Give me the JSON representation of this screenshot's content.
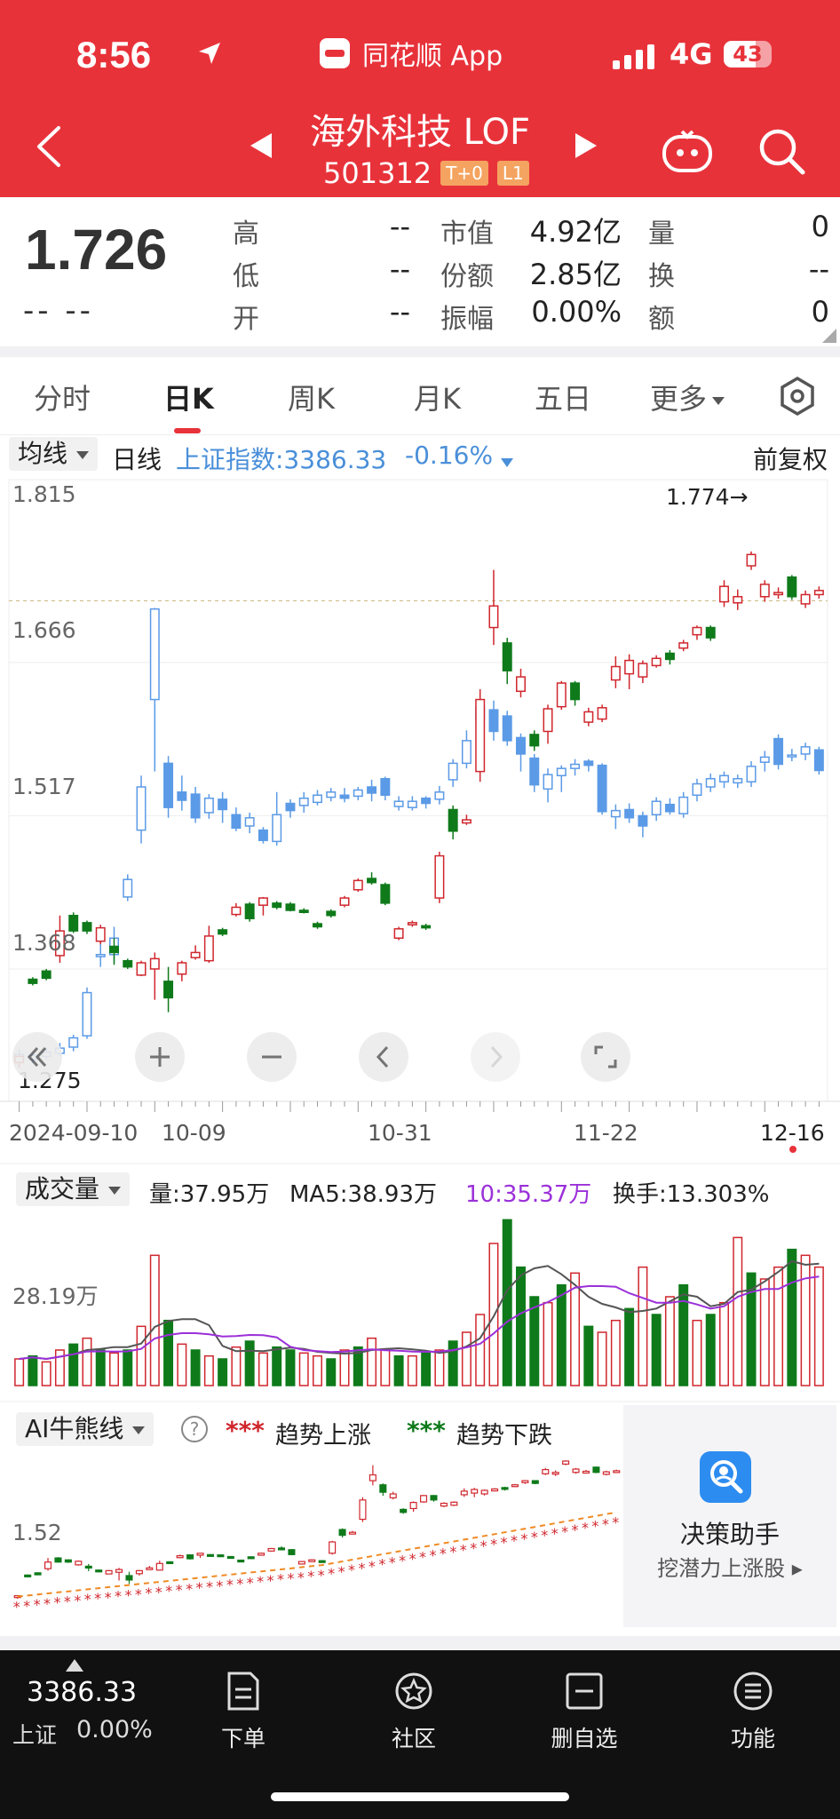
{
  "status_bar": {
    "time": "8:56",
    "app_name": "同花顺 App",
    "network": "4G",
    "battery": "43"
  },
  "header": {
    "title": "海外科技 LOF",
    "code": "501312",
    "tag_t0": "T+0",
    "tag_l1": "L1"
  },
  "quote": {
    "price": "1.726",
    "change": "-- --",
    "fields": [
      {
        "label": "高",
        "value": "--"
      },
      {
        "label": "低",
        "value": "--"
      },
      {
        "label": "开",
        "value": "--"
      },
      {
        "label": "市值",
        "value": "4.92亿"
      },
      {
        "label": "份额",
        "value": "2.85亿"
      },
      {
        "label": "振幅",
        "value": "0.00%"
      },
      {
        "label": "量",
        "value": "0"
      },
      {
        "label": "换",
        "value": "--"
      },
      {
        "label": "额",
        "value": "0"
      }
    ]
  },
  "tabs": [
    "分时",
    "日K",
    "周K",
    "月K",
    "五日",
    "更多"
  ],
  "active_tab": "日K",
  "indicator_bar": {
    "select": "均线",
    "period": "日线",
    "index_text": "上证指数:3386.33",
    "index_change": "-0.16%",
    "adjust": "前复权"
  },
  "kline": {
    "y_labels": [
      "1.815",
      "1.666",
      "1.517",
      "1.368",
      "1.275"
    ],
    "max_marker": "1.774→",
    "x_labels": [
      "2024-09-10",
      "10-09",
      "10-31",
      "11-22",
      "12-16"
    ],
    "colors": {
      "up": "#d0262d",
      "down": "#0e7a1a",
      "index": "#5b9ae6"
    }
  },
  "volume": {
    "select": "成交量",
    "vol": "量:37.95万",
    "ma5": "MA5:38.93万",
    "ma10": "10:35.37万",
    "turnover": "换手:13.303%",
    "y_label": "28.19万"
  },
  "ai_panel": {
    "select": "AI牛熊线",
    "help": "?",
    "legend_up_mark": "***",
    "legend_up": "趋势上涨",
    "legend_down_mark": "***",
    "legend_down": "趋势下跌",
    "y_label": "1.52",
    "assistant_title": "决策助手",
    "assistant_sub": "挖潜力上涨股 ▸"
  },
  "bottom_bar": {
    "index_value": "3386.33",
    "index_name": "上证",
    "index_pct": "0.00%",
    "items": [
      "下单",
      "社区",
      "删自选",
      "功能"
    ]
  },
  "chart_data": {
    "type": "candlestick",
    "title": "",
    "y_range": [
      1.26,
      1.83
    ],
    "fund_candles": [
      {
        "o": 1.277,
        "c": 1.283,
        "h": 1.285,
        "l": 1.272
      },
      {
        "o": 1.358,
        "c": 1.354,
        "h": 1.36,
        "l": 1.352
      },
      {
        "o": 1.366,
        "c": 1.359,
        "h": 1.368,
        "l": 1.357
      },
      {
        "o": 1.381,
        "c": 1.405,
        "h": 1.42,
        "l": 1.374
      },
      {
        "o": 1.42,
        "c": 1.405,
        "h": 1.423,
        "l": 1.403
      },
      {
        "o": 1.413,
        "c": 1.405,
        "h": 1.415,
        "l": 1.402
      },
      {
        "o": 1.395,
        "c": 1.408,
        "h": 1.411,
        "l": 1.392
      },
      {
        "o": 1.39,
        "c": 1.384,
        "h": 1.398,
        "l": 1.372
      },
      {
        "o": 1.376,
        "c": 1.37,
        "h": 1.378,
        "l": 1.368
      },
      {
        "o": 1.362,
        "c": 1.374,
        "h": 1.376,
        "l": 1.361
      },
      {
        "o": 1.368,
        "c": 1.378,
        "h": 1.384,
        "l": 1.338
      },
      {
        "o": 1.356,
        "c": 1.34,
        "h": 1.37,
        "l": 1.326
      },
      {
        "o": 1.363,
        "c": 1.374,
        "h": 1.376,
        "l": 1.356
      },
      {
        "o": 1.379,
        "c": 1.384,
        "h": 1.391,
        "l": 1.377
      },
      {
        "o": 1.376,
        "c": 1.4,
        "h": 1.41,
        "l": 1.374
      },
      {
        "o": 1.406,
        "c": 1.402,
        "h": 1.408,
        "l": 1.4
      },
      {
        "o": 1.421,
        "c": 1.428,
        "h": 1.432,
        "l": 1.419
      },
      {
        "o": 1.431,
        "c": 1.417,
        "h": 1.433,
        "l": 1.414
      },
      {
        "o": 1.43,
        "c": 1.437,
        "h": 1.438,
        "l": 1.42
      },
      {
        "o": 1.432,
        "c": 1.428,
        "h": 1.434,
        "l": 1.426
      },
      {
        "o": 1.431,
        "c": 1.425,
        "h": 1.433,
        "l": 1.424
      },
      {
        "o": 1.425,
        "c": 1.423,
        "h": 1.427,
        "l": 1.422
      },
      {
        "o": 1.412,
        "c": 1.409,
        "h": 1.414,
        "l": 1.407
      },
      {
        "o": 1.424,
        "c": 1.42,
        "h": 1.426,
        "l": 1.418
      },
      {
        "o": 1.43,
        "c": 1.437,
        "h": 1.439,
        "l": 1.428
      },
      {
        "o": 1.445,
        "c": 1.454,
        "h": 1.456,
        "l": 1.443
      },
      {
        "o": 1.456,
        "c": 1.452,
        "h": 1.462,
        "l": 1.45
      },
      {
        "o": 1.45,
        "c": 1.432,
        "h": 1.452,
        "l": 1.43
      },
      {
        "o": 1.398,
        "c": 1.407,
        "h": 1.409,
        "l": 1.396
      },
      {
        "o": 1.411,
        "c": 1.413,
        "h": 1.415,
        "l": 1.409
      },
      {
        "o": 1.41,
        "c": 1.408,
        "h": 1.412,
        "l": 1.406
      },
      {
        "o": 1.437,
        "c": 1.478,
        "h": 1.482,
        "l": 1.432
      },
      {
        "o": 1.523,
        "c": 1.502,
        "h": 1.527,
        "l": 1.494
      },
      {
        "o": 1.51,
        "c": 1.513,
        "h": 1.518,
        "l": 1.508
      },
      {
        "o": 1.56,
        "c": 1.63,
        "h": 1.64,
        "l": 1.55
      },
      {
        "o": 1.7,
        "c": 1.721,
        "h": 1.756,
        "l": 1.683
      },
      {
        "o": 1.685,
        "c": 1.658,
        "h": 1.69,
        "l": 1.645
      },
      {
        "o": 1.638,
        "c": 1.652,
        "h": 1.66,
        "l": 1.632
      },
      {
        "o": 1.596,
        "c": 1.585,
        "h": 1.6,
        "l": 1.58
      },
      {
        "o": 1.599,
        "c": 1.621,
        "h": 1.625,
        "l": 1.587
      },
      {
        "o": 1.623,
        "c": 1.646,
        "h": 1.648,
        "l": 1.62
      },
      {
        "o": 1.646,
        "c": 1.63,
        "h": 1.648,
        "l": 1.624
      },
      {
        "o": 1.608,
        "c": 1.618,
        "h": 1.622,
        "l": 1.604
      },
      {
        "o": 1.611,
        "c": 1.622,
        "h": 1.625,
        "l": 1.608
      },
      {
        "o": 1.649,
        "c": 1.662,
        "h": 1.672,
        "l": 1.641
      },
      {
        "o": 1.655,
        "c": 1.668,
        "h": 1.674,
        "l": 1.64
      },
      {
        "o": 1.652,
        "c": 1.665,
        "h": 1.668,
        "l": 1.646
      },
      {
        "o": 1.663,
        "c": 1.67,
        "h": 1.673,
        "l": 1.661
      },
      {
        "o": 1.675,
        "c": 1.669,
        "h": 1.678,
        "l": 1.664
      },
      {
        "o": 1.68,
        "c": 1.685,
        "h": 1.688,
        "l": 1.677
      },
      {
        "o": 1.693,
        "c": 1.7,
        "h": 1.702,
        "l": 1.688
      },
      {
        "o": 1.7,
        "c": 1.69,
        "h": 1.702,
        "l": 1.687
      },
      {
        "o": 1.725,
        "c": 1.74,
        "h": 1.746,
        "l": 1.72
      },
      {
        "o": 1.724,
        "c": 1.73,
        "h": 1.737,
        "l": 1.717
      },
      {
        "o": 1.76,
        "c": 1.771,
        "h": 1.774,
        "l": 1.756
      },
      {
        "o": 1.73,
        "c": 1.742,
        "h": 1.746,
        "l": 1.725
      },
      {
        "o": 1.732,
        "c": 1.734,
        "h": 1.739,
        "l": 1.728
      },
      {
        "o": 1.749,
        "c": 1.73,
        "h": 1.751,
        "l": 1.727
      },
      {
        "o": 1.723,
        "c": 1.732,
        "h": 1.736,
        "l": 1.719
      },
      {
        "o": 1.732,
        "c": 1.736,
        "h": 1.74,
        "l": 1.728
      }
    ],
    "index_candles": [
      {
        "o": 1.278,
        "c": 1.285,
        "h": 1.29,
        "l": 1.272
      },
      {
        "o": 1.28,
        "c": 1.284,
        "h": 1.286,
        "l": 1.276
      },
      {
        "o": 1.283,
        "c": 1.287,
        "h": 1.292,
        "l": 1.28
      },
      {
        "o": 1.286,
        "c": 1.291,
        "h": 1.296,
        "l": 1.283
      },
      {
        "o": 1.292,
        "c": 1.301,
        "h": 1.304,
        "l": 1.288
      },
      {
        "o": 1.303,
        "c": 1.345,
        "h": 1.35,
        "l": 1.3
      },
      {
        "o": 1.38,
        "c": 1.382,
        "h": 1.41,
        "l": 1.37
      },
      {
        "o": 1.382,
        "c": 1.398,
        "h": 1.409,
        "l": 1.374
      },
      {
        "o": 1.438,
        "c": 1.455,
        "h": 1.46,
        "l": 1.434
      },
      {
        "o": 1.503,
        "c": 1.545,
        "h": 1.556,
        "l": 1.49
      },
      {
        "o": 1.63,
        "c": 1.718,
        "h": 1.719,
        "l": 1.56
      },
      {
        "o": 1.568,
        "c": 1.525,
        "h": 1.575,
        "l": 1.515
      },
      {
        "o": 1.54,
        "c": 1.532,
        "h": 1.556,
        "l": 1.522
      },
      {
        "o": 1.538,
        "c": 1.515,
        "h": 1.545,
        "l": 1.51
      },
      {
        "o": 1.52,
        "c": 1.534,
        "h": 1.538,
        "l": 1.514
      },
      {
        "o": 1.533,
        "c": 1.523,
        "h": 1.54,
        "l": 1.51
      },
      {
        "o": 1.518,
        "c": 1.505,
        "h": 1.525,
        "l": 1.502
      },
      {
        "o": 1.507,
        "c": 1.515,
        "h": 1.52,
        "l": 1.5
      },
      {
        "o": 1.503,
        "c": 1.493,
        "h": 1.506,
        "l": 1.49
      },
      {
        "o": 1.492,
        "c": 1.518,
        "h": 1.54,
        "l": 1.488
      },
      {
        "o": 1.529,
        "c": 1.522,
        "h": 1.533,
        "l": 1.515
      },
      {
        "o": 1.527,
        "c": 1.534,
        "h": 1.54,
        "l": 1.52
      },
      {
        "o": 1.53,
        "c": 1.537,
        "h": 1.542,
        "l": 1.527
      },
      {
        "o": 1.535,
        "c": 1.54,
        "h": 1.544,
        "l": 1.531
      },
      {
        "o": 1.537,
        "c": 1.534,
        "h": 1.544,
        "l": 1.53
      },
      {
        "o": 1.536,
        "c": 1.542,
        "h": 1.545,
        "l": 1.532
      },
      {
        "o": 1.545,
        "c": 1.539,
        "h": 1.552,
        "l": 1.531
      },
      {
        "o": 1.553,
        "c": 1.537,
        "h": 1.555,
        "l": 1.532
      },
      {
        "o": 1.526,
        "c": 1.531,
        "h": 1.536,
        "l": 1.522
      },
      {
        "o": 1.525,
        "c": 1.531,
        "h": 1.536,
        "l": 1.522
      },
      {
        "o": 1.534,
        "c": 1.529,
        "h": 1.536,
        "l": 1.524
      },
      {
        "o": 1.533,
        "c": 1.54,
        "h": 1.546,
        "l": 1.528
      },
      {
        "o": 1.552,
        "c": 1.568,
        "h": 1.572,
        "l": 1.545
      },
      {
        "o": 1.568,
        "c": 1.59,
        "h": 1.6,
        "l": 1.563
      },
      {
        "o": 1.61,
        "c": 1.623,
        "h": 1.63,
        "l": 1.596
      },
      {
        "o": 1.62,
        "c": 1.599,
        "h": 1.629,
        "l": 1.59
      },
      {
        "o": 1.614,
        "c": 1.59,
        "h": 1.619,
        "l": 1.585
      },
      {
        "o": 1.593,
        "c": 1.577,
        "h": 1.597,
        "l": 1.56
      },
      {
        "o": 1.573,
        "c": 1.547,
        "h": 1.577,
        "l": 1.54
      },
      {
        "o": 1.543,
        "c": 1.557,
        "h": 1.563,
        "l": 1.53
      },
      {
        "o": 1.556,
        "c": 1.563,
        "h": 1.566,
        "l": 1.54
      },
      {
        "o": 1.563,
        "c": 1.567,
        "h": 1.572,
        "l": 1.556
      },
      {
        "o": 1.57,
        "c": 1.566,
        "h": 1.572,
        "l": 1.56
      },
      {
        "o": 1.566,
        "c": 1.521,
        "h": 1.568,
        "l": 1.518
      },
      {
        "o": 1.516,
        "c": 1.522,
        "h": 1.528,
        "l": 1.504
      },
      {
        "o": 1.523,
        "c": 1.515,
        "h": 1.529,
        "l": 1.51
      },
      {
        "o": 1.517,
        "c": 1.507,
        "h": 1.521,
        "l": 1.496
      },
      {
        "o": 1.518,
        "c": 1.531,
        "h": 1.535,
        "l": 1.512
      },
      {
        "o": 1.528,
        "c": 1.521,
        "h": 1.534,
        "l": 1.518
      },
      {
        "o": 1.519,
        "c": 1.535,
        "h": 1.54,
        "l": 1.515
      },
      {
        "o": 1.537,
        "c": 1.548,
        "h": 1.553,
        "l": 1.531
      },
      {
        "o": 1.545,
        "c": 1.553,
        "h": 1.558,
        "l": 1.54
      },
      {
        "o": 1.55,
        "c": 1.556,
        "h": 1.56,
        "l": 1.544
      },
      {
        "o": 1.549,
        "c": 1.553,
        "h": 1.557,
        "l": 1.544
      },
      {
        "o": 1.55,
        "c": 1.565,
        "h": 1.57,
        "l": 1.545
      },
      {
        "o": 1.569,
        "c": 1.574,
        "h": 1.58,
        "l": 1.56
      },
      {
        "o": 1.592,
        "c": 1.567,
        "h": 1.596,
        "l": 1.562
      },
      {
        "o": 1.575,
        "c": 1.576,
        "h": 1.582,
        "l": 1.57
      },
      {
        "o": 1.577,
        "c": 1.584,
        "h": 1.588,
        "l": 1.571
      },
      {
        "o": 1.581,
        "c": 1.561,
        "h": 1.584,
        "l": 1.557
      }
    ],
    "volumes": [
      9,
      10,
      8,
      12,
      14,
      16,
      12,
      11,
      12,
      20,
      44,
      22,
      14,
      12,
      10,
      9,
      13,
      15,
      11,
      13,
      12,
      11,
      10,
      9,
      12,
      13,
      16,
      12,
      10,
      10,
      11,
      12,
      15,
      18,
      24,
      48,
      56,
      40,
      30,
      28,
      34,
      38,
      20,
      18,
      22,
      26,
      40,
      24,
      30,
      34,
      22,
      24,
      28,
      50,
      38,
      36,
      40,
      46,
      44,
      40
    ],
    "volume_up": [
      true,
      false,
      true,
      true,
      false,
      true,
      false,
      true,
      false,
      true,
      true,
      false,
      true,
      false,
      true,
      false,
      true,
      false,
      true,
      false,
      false,
      true,
      true,
      false,
      true,
      false,
      true,
      true,
      false,
      true,
      false,
      true,
      false,
      true,
      true,
      true,
      false,
      false,
      false,
      true,
      false,
      true,
      false,
      true,
      true,
      false,
      true,
      false,
      true,
      false,
      true,
      false,
      true,
      true,
      false,
      true,
      true,
      false,
      true,
      true
    ]
  }
}
